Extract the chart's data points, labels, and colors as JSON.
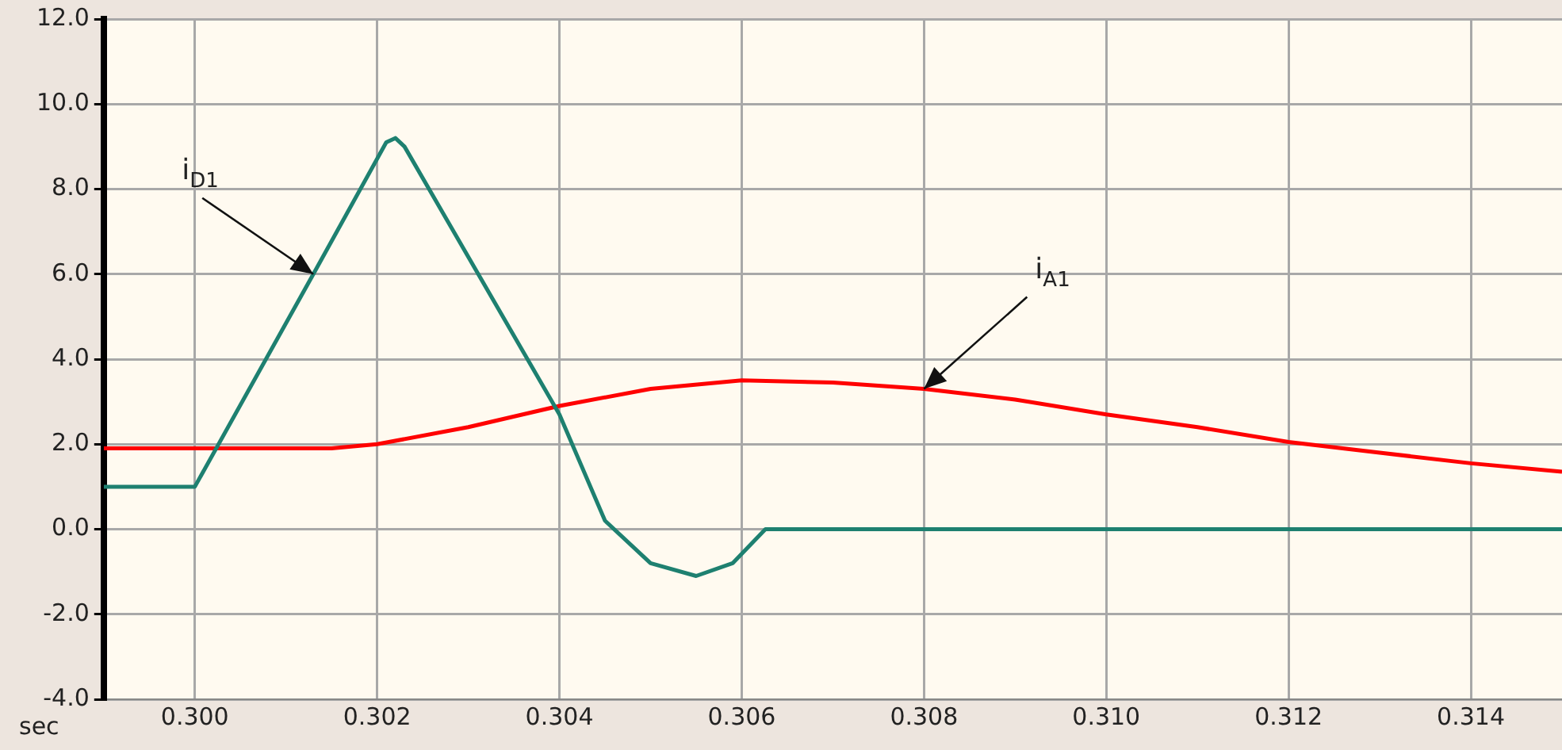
{
  "chart_data": {
    "type": "line",
    "xlabel": "sec",
    "xlim": [
      0.299,
      0.315
    ],
    "xticks": [
      {
        "value": 0.3,
        "label": "0.300"
      },
      {
        "value": 0.302,
        "label": "0.302"
      },
      {
        "value": 0.304,
        "label": "0.304"
      },
      {
        "value": 0.306,
        "label": "0.306"
      },
      {
        "value": 0.308,
        "label": "0.308"
      },
      {
        "value": 0.31,
        "label": "0.310"
      },
      {
        "value": 0.312,
        "label": "0.312"
      },
      {
        "value": 0.314,
        "label": "0.314"
      }
    ],
    "ylim": [
      -4,
      12
    ],
    "yticks": [
      {
        "value": -4,
        "label": "-4.0"
      },
      {
        "value": -2,
        "label": "-2.0"
      },
      {
        "value": 0,
        "label": "0.0"
      },
      {
        "value": 2,
        "label": "2.0"
      },
      {
        "value": 4,
        "label": "4.0"
      },
      {
        "value": 6,
        "label": "6.0"
      },
      {
        "value": 8,
        "label": "8.0"
      },
      {
        "value": 10,
        "label": "10.0"
      },
      {
        "value": 12,
        "label": "12.0"
      }
    ],
    "grid": true,
    "legend": false,
    "marker": "none",
    "line_style": "solid",
    "series": [
      {
        "color": "#1e8070",
        "x": [
          0.299,
          0.3,
          0.3013,
          0.3021,
          0.3022,
          0.3023,
          0.304,
          0.3045,
          0.305,
          0.3055,
          0.3059,
          0.30626,
          0.315
        ],
        "values": [
          1.0,
          1.0,
          6.0,
          9.1,
          9.2,
          9.0,
          2.7,
          0.2,
          -0.8,
          -1.1,
          -0.8,
          0,
          0
        ]
      },
      {
        "color": "#ff0000",
        "x": [
          0.299,
          0.3,
          0.301,
          0.3015,
          0.302,
          0.303,
          0.304,
          0.305,
          0.306,
          0.307,
          0.308,
          0.309,
          0.31,
          0.311,
          0.312,
          0.313,
          0.314,
          0.315
        ],
        "values": [
          1.9,
          1.9,
          1.9,
          1.9,
          2.0,
          2.4,
          2.9,
          3.3,
          3.5,
          3.45,
          3.3,
          3.05,
          2.7,
          2.4,
          2.05,
          1.8,
          1.55,
          1.35
        ]
      }
    ],
    "annotations": [
      {
        "text": "i$_{D1}$",
        "x": 0.3013,
        "y": 6.0
      },
      {
        "text": "i$_{A1}$",
        "x": 0.308,
        "y": 3.3
      }
    ]
  }
}
